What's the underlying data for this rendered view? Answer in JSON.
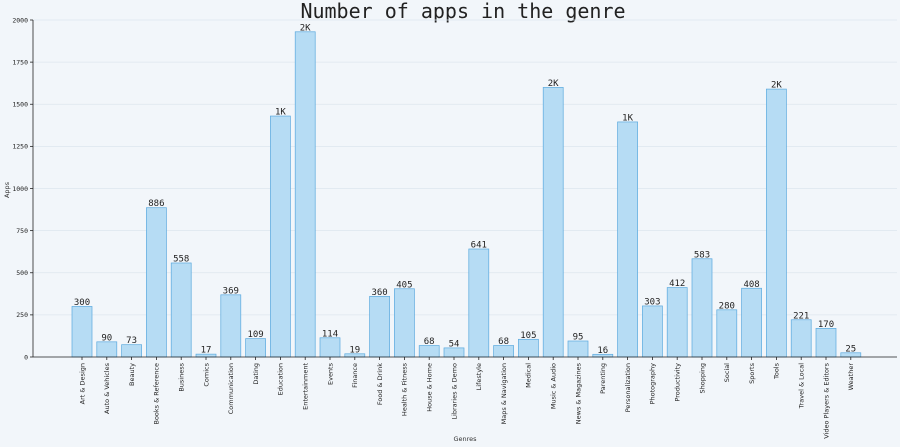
{
  "chart_data": {
    "type": "bar",
    "title": "Number of apps in the genre",
    "xlabel": "Genres",
    "ylabel": "Apps",
    "ylim": [
      0,
      2000
    ],
    "yticks": [
      0,
      250,
      500,
      750,
      1000,
      1250,
      1500,
      1750,
      2000
    ],
    "grid": "horizontal",
    "colors": {
      "bar_fill": "#b6dcf4",
      "bar_stroke": "#5aa9de",
      "background": "#f2f6fa"
    },
    "categories": [
      "Art & Design",
      "Auto & Vehicles",
      "Beauty",
      "Books & Reference",
      "Business",
      "Comics",
      "Communication",
      "Dating",
      "Education",
      "Entertainment",
      "Events",
      "Finance",
      "Food & Drink",
      "Health & Fitness",
      "House & Home",
      "Libraries & Demo",
      "Lifestyle",
      "Maps & Navigation",
      "Medical",
      "Music & Audio",
      "News & Magazines",
      "Parenting",
      "Personalization",
      "Photography",
      "Productivity",
      "Shopping",
      "Social",
      "Sports",
      "Tools",
      "Travel & Local",
      "Video Players & Editors",
      "Weather"
    ],
    "values": [
      300,
      90,
      73,
      886,
      558,
      17,
      369,
      109,
      1430,
      1930,
      114,
      19,
      360,
      405,
      68,
      54,
      641,
      68,
      105,
      1600,
      95,
      16,
      1395,
      303,
      412,
      583,
      280,
      408,
      1590,
      221,
      170,
      25
    ],
    "data_labels": [
      "300",
      "90",
      "73",
      "886",
      "558",
      "17",
      "369",
      "109",
      "1K",
      "2K",
      "114",
      "19",
      "360",
      "405",
      "68",
      "54",
      "641",
      "68",
      "105",
      "2K",
      "95",
      "16",
      "1K",
      "303",
      "412",
      "583",
      "280",
      "408",
      "2K",
      "221",
      "170",
      "25"
    ]
  }
}
